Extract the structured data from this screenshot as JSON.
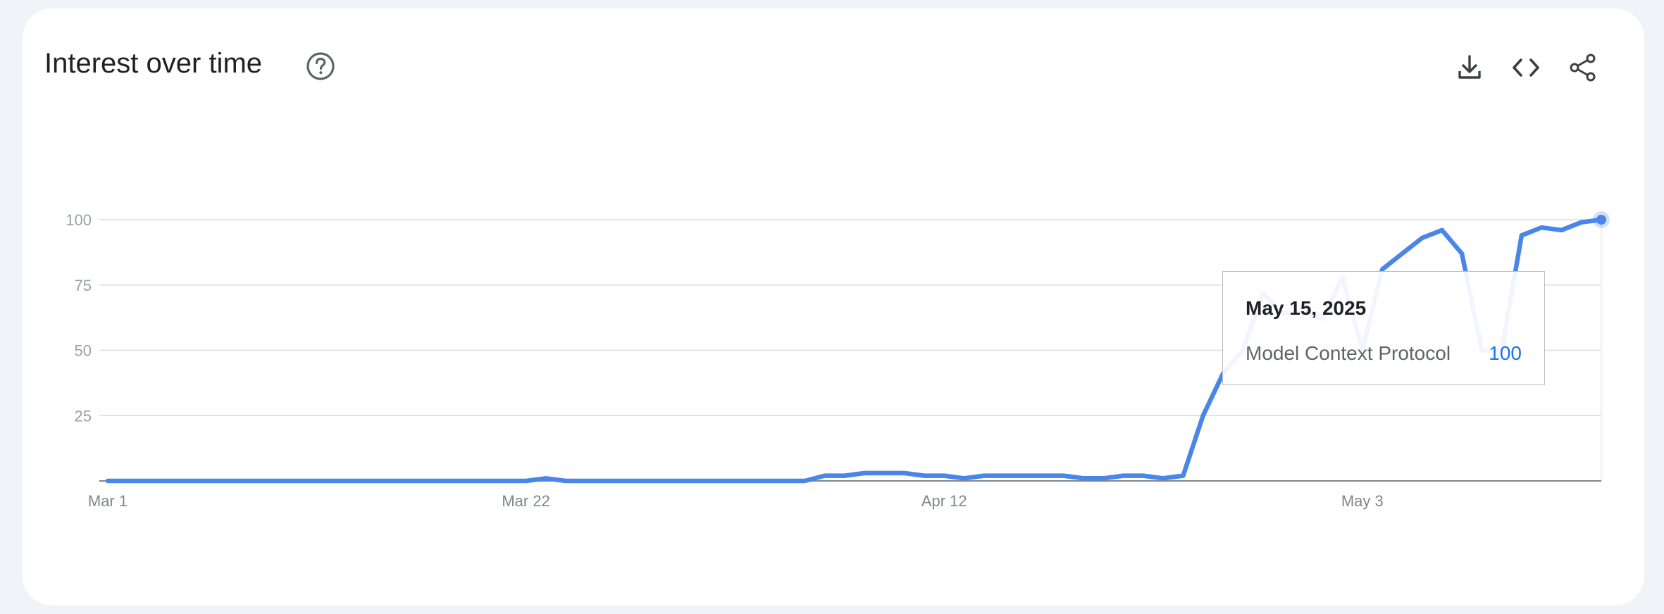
{
  "header": {
    "title": "Interest over time",
    "icons": {
      "help": "help-circle-icon",
      "download": "download-icon",
      "embed": "code-icon",
      "share": "share-icon"
    }
  },
  "tooltip": {
    "date": "May 15, 2025",
    "series": "Model Context Protocol",
    "value": "100"
  },
  "colors": {
    "series": "#4a86e8",
    "grid": "#dadce0",
    "axis": "#80868b",
    "tick": "#9aa0a6",
    "tooltip_value": "#1a73e8"
  },
  "chart_data": {
    "type": "line",
    "title": "",
    "xlabel": "",
    "ylabel": "",
    "ylim": [
      0,
      100
    ],
    "yticks": [
      "100",
      "75",
      "50",
      "25"
    ],
    "grid": true,
    "x_tick_labels": [
      {
        "label": "Mar 1",
        "date": "2025-03-01"
      },
      {
        "label": "Mar 22",
        "date": "2025-03-22"
      },
      {
        "label": "Apr 12",
        "date": "2025-04-12"
      },
      {
        "label": "May 3",
        "date": "2025-05-03"
      }
    ],
    "x_start": "2025-03-01",
    "x_end": "2025-05-15",
    "series": [
      {
        "name": "Model Context Protocol",
        "points": [
          [
            "2025-03-01",
            0
          ],
          [
            "2025-03-02",
            0
          ],
          [
            "2025-03-03",
            0
          ],
          [
            "2025-03-04",
            0
          ],
          [
            "2025-03-05",
            0
          ],
          [
            "2025-03-06",
            0
          ],
          [
            "2025-03-07",
            0
          ],
          [
            "2025-03-08",
            0
          ],
          [
            "2025-03-09",
            0
          ],
          [
            "2025-03-10",
            0
          ],
          [
            "2025-03-11",
            0
          ],
          [
            "2025-03-12",
            0
          ],
          [
            "2025-03-13",
            0
          ],
          [
            "2025-03-14",
            0
          ],
          [
            "2025-03-15",
            0
          ],
          [
            "2025-03-16",
            0
          ],
          [
            "2025-03-17",
            0
          ],
          [
            "2025-03-18",
            0
          ],
          [
            "2025-03-19",
            0
          ],
          [
            "2025-03-20",
            0
          ],
          [
            "2025-03-21",
            0
          ],
          [
            "2025-03-22",
            0
          ],
          [
            "2025-03-23",
            1
          ],
          [
            "2025-03-24",
            0
          ],
          [
            "2025-03-25",
            0
          ],
          [
            "2025-03-26",
            0
          ],
          [
            "2025-03-27",
            0
          ],
          [
            "2025-03-28",
            0
          ],
          [
            "2025-03-29",
            0
          ],
          [
            "2025-03-30",
            0
          ],
          [
            "2025-03-31",
            0
          ],
          [
            "2025-04-01",
            0
          ],
          [
            "2025-04-02",
            0
          ],
          [
            "2025-04-03",
            0
          ],
          [
            "2025-04-04",
            0
          ],
          [
            "2025-04-05",
            0
          ],
          [
            "2025-04-06",
            2
          ],
          [
            "2025-04-07",
            2
          ],
          [
            "2025-04-08",
            3
          ],
          [
            "2025-04-09",
            3
          ],
          [
            "2025-04-10",
            3
          ],
          [
            "2025-04-11",
            2
          ],
          [
            "2025-04-12",
            2
          ],
          [
            "2025-04-13",
            1
          ],
          [
            "2025-04-14",
            2
          ],
          [
            "2025-04-15",
            2
          ],
          [
            "2025-04-16",
            2
          ],
          [
            "2025-04-17",
            2
          ],
          [
            "2025-04-18",
            2
          ],
          [
            "2025-04-19",
            1
          ],
          [
            "2025-04-20",
            1
          ],
          [
            "2025-04-21",
            2
          ],
          [
            "2025-04-22",
            2
          ],
          [
            "2025-04-23",
            1
          ],
          [
            "2025-04-24",
            2
          ],
          [
            "2025-04-25",
            25
          ],
          [
            "2025-04-26",
            41
          ],
          [
            "2025-04-27",
            50
          ],
          [
            "2025-04-28",
            72
          ],
          [
            "2025-04-29",
            64
          ],
          [
            "2025-04-30",
            65
          ],
          [
            "2025-05-01",
            62
          ],
          [
            "2025-05-02",
            78
          ],
          [
            "2025-05-03",
            50
          ],
          [
            "2025-05-04",
            81
          ],
          [
            "2025-05-05",
            87
          ],
          [
            "2025-05-06",
            93
          ],
          [
            "2025-05-07",
            96
          ],
          [
            "2025-05-08",
            87
          ],
          [
            "2025-05-09",
            50
          ],
          [
            "2025-05-10",
            50
          ],
          [
            "2025-05-11",
            94
          ],
          [
            "2025-05-12",
            97
          ],
          [
            "2025-05-13",
            96
          ],
          [
            "2025-05-14",
            99
          ],
          [
            "2025-05-15",
            100
          ]
        ]
      }
    ]
  }
}
